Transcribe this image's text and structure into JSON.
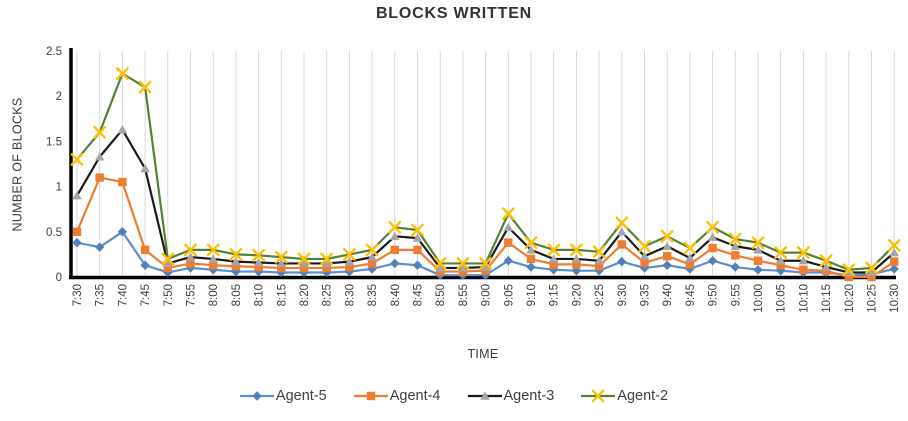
{
  "chart_data": {
    "type": "line",
    "title": "BLOCKS WRITTEN",
    "xlabel": "TIME",
    "ylabel": "NUMBER OF BLOCKS",
    "ylim": [
      0,
      2.5
    ],
    "yticks": [
      "0",
      "0.5",
      "1",
      "1.5",
      "2",
      "2.5"
    ],
    "grid": "vertical-only",
    "legend_position": "bottom",
    "categories": [
      "7:30",
      "7:35",
      "7:40",
      "7:45",
      "7:50",
      "7:55",
      "8:00",
      "8:05",
      "8:10",
      "8:15",
      "8:20",
      "8:25",
      "8:30",
      "8:35",
      "8:40",
      "8:45",
      "8:50",
      "8:55",
      "9:00",
      "9:05",
      "9:10",
      "9:15",
      "9:20",
      "9:25",
      "9:30",
      "9:35",
      "9:40",
      "9:45",
      "9:50",
      "9:55",
      "10:00",
      "10:05",
      "10:10",
      "10:15",
      "10:20",
      "10:25",
      "10:30"
    ],
    "series": [
      {
        "name": "Agent-5",
        "marker": "diamond",
        "marker_color": "#4E81BD",
        "line_color": "#5B8FC9",
        "values": [
          0.38,
          0.33,
          0.5,
          0.13,
          0.05,
          0.1,
          0.08,
          0.06,
          0.06,
          0.05,
          0.05,
          0.05,
          0.06,
          0.09,
          0.15,
          0.13,
          0.02,
          0.02,
          0.02,
          0.18,
          0.11,
          0.08,
          0.07,
          0.07,
          0.17,
          0.1,
          0.13,
          0.09,
          0.18,
          0.11,
          0.08,
          0.07,
          0.05,
          0.05,
          0.02,
          0.03,
          0.09
        ]
      },
      {
        "name": "Agent-4",
        "marker": "square",
        "marker_color": "#ED7D31",
        "line_color": "#ED7D31",
        "values": [
          0.5,
          1.1,
          1.05,
          0.3,
          0.1,
          0.15,
          0.13,
          0.12,
          0.11,
          0.1,
          0.1,
          0.1,
          0.11,
          0.15,
          0.3,
          0.3,
          0.06,
          0.06,
          0.07,
          0.38,
          0.2,
          0.14,
          0.14,
          0.12,
          0.36,
          0.16,
          0.23,
          0.14,
          0.32,
          0.24,
          0.18,
          0.13,
          0.08,
          0.07,
          0.0,
          0.0,
          0.17
        ]
      },
      {
        "name": "Agent-3",
        "marker": "triangle",
        "marker_color": "#A5A5A5",
        "line_color": "#1a1a1a",
        "values": [
          0.9,
          1.33,
          1.63,
          1.2,
          0.15,
          0.22,
          0.2,
          0.17,
          0.16,
          0.15,
          0.15,
          0.15,
          0.17,
          0.22,
          0.45,
          0.43,
          0.1,
          0.1,
          0.11,
          0.55,
          0.3,
          0.2,
          0.2,
          0.18,
          0.5,
          0.23,
          0.34,
          0.21,
          0.44,
          0.34,
          0.3,
          0.18,
          0.18,
          0.11,
          0.05,
          0.05,
          0.27
        ]
      },
      {
        "name": "Agent-2",
        "marker": "x",
        "marker_color": "#FFC000",
        "line_color": "#548235",
        "values": [
          1.3,
          1.6,
          2.25,
          2.1,
          0.2,
          0.3,
          0.3,
          0.25,
          0.24,
          0.22,
          0.2,
          0.2,
          0.25,
          0.3,
          0.55,
          0.52,
          0.15,
          0.15,
          0.15,
          0.7,
          0.38,
          0.3,
          0.3,
          0.28,
          0.6,
          0.34,
          0.45,
          0.32,
          0.55,
          0.42,
          0.38,
          0.27,
          0.27,
          0.18,
          0.08,
          0.1,
          0.35
        ]
      }
    ],
    "colors": {
      "gridline": "#D9D9D9",
      "axis": "#000000",
      "tick_text": "#404040"
    }
  }
}
